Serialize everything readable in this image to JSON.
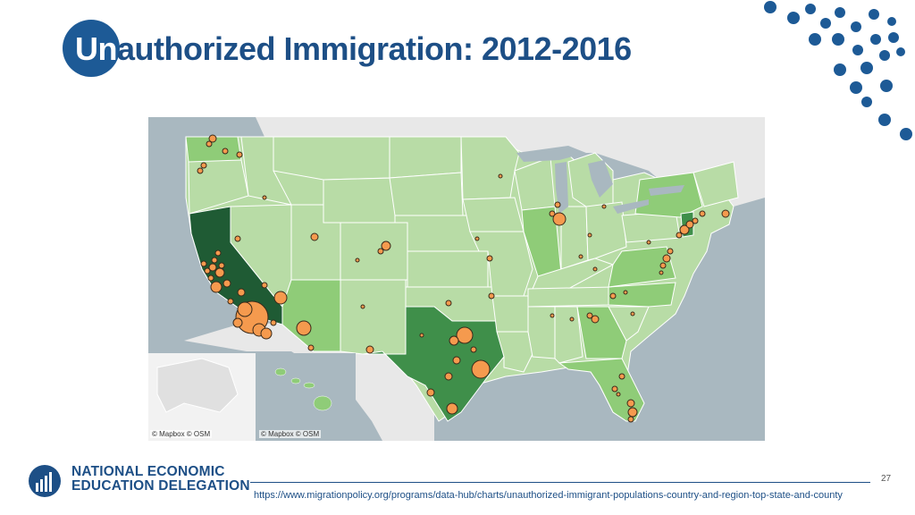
{
  "title": {
    "prefix": "Un",
    "rest": "authorized Immigration: 2012-2016"
  },
  "map": {
    "attribution_main": "© Mapbox © OSM",
    "attribution_inset": "© Mapbox © OSM",
    "colors": {
      "water": "#a9b8c0",
      "land_outside": "#e8e8e8",
      "state_light": "#b8dca6",
      "state_medium": "#8fcc78",
      "state_dark": "#3f8f4a",
      "state_darkest": "#1f5b34",
      "county_bubble": "#f59a4e",
      "bubble_stroke": "#3a2a1a"
    }
  },
  "footer": {
    "org_line1": "NATIONAL ECONOMIC",
    "org_line2": "EDUCATION DELEGATION",
    "page_number": "27",
    "source_url": "https://www.migrationpolicy.org/programs/data-hub/charts/unauthorized-immigrant-populations-country-and-region-top-state-and-county"
  },
  "brand_color": "#1d4f86"
}
